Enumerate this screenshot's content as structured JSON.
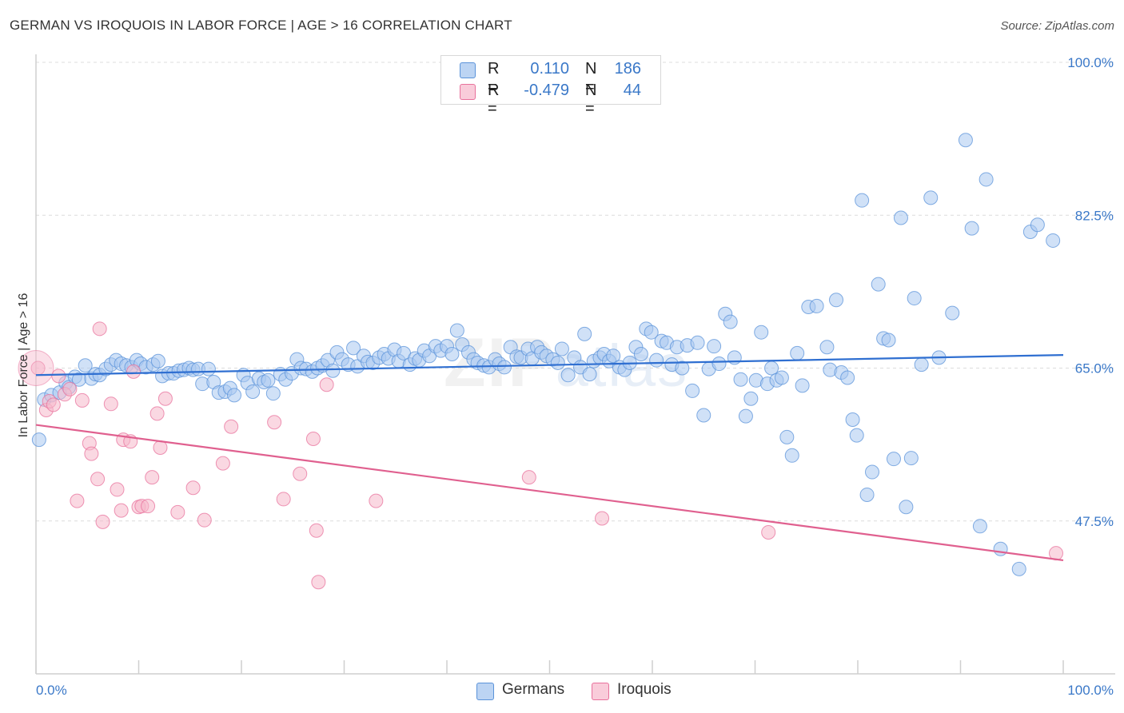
{
  "title": "GERMAN VS IROQUOIS IN LABOR FORCE | AGE > 16 CORRELATION CHART",
  "source": "Source: ZipAtlas.com",
  "watermark": {
    "bold": "ZIP",
    "light": "atlas"
  },
  "legend_top": [
    {
      "r_label": "R =",
      "r_value": "0.110",
      "n_label": "N =",
      "n_value": "186",
      "color": "#a9c8f0"
    },
    {
      "r_label": "R =",
      "r_value": "-0.479",
      "n_label": "N =",
      "n_value": "44",
      "color": "#f6b8cb"
    }
  ],
  "legend_bottom": [
    {
      "label": "Germans",
      "color": "#a9c8f0"
    },
    {
      "label": "Iroquois",
      "color": "#f6b8cb"
    }
  ],
  "chart_data": {
    "type": "scatter",
    "title": "GERMAN VS IROQUOIS IN LABOR FORCE | AGE > 16 CORRELATION CHART",
    "xlabel": "",
    "ylabel": "In Labor Force | Age > 16",
    "xlim": [
      0,
      100
    ],
    "ylim": [
      30,
      100
    ],
    "x_tick_labels": [
      "0.0%",
      "100.0%"
    ],
    "y_ticks": [
      47.5,
      65.0,
      82.5,
      100.0
    ],
    "y_tick_labels": [
      "47.5%",
      "65.0%",
      "82.5%",
      "100.0%"
    ],
    "grid": "horizontal dashed",
    "series": [
      {
        "name": "Germans",
        "color": "#5b93d9",
        "fill": "#a9c8f0",
        "trend": [
          [
            0,
            64.2
          ],
          [
            100,
            66.5
          ]
        ],
        "points": [
          [
            0.3,
            56.8
          ],
          [
            0.8,
            61.4
          ],
          [
            1.5,
            61.9
          ],
          [
            2.3,
            62.2
          ],
          [
            2.9,
            63.3
          ],
          [
            3.2,
            62.8
          ],
          [
            3.8,
            64.0
          ],
          [
            4.2,
            63.7
          ],
          [
            4.8,
            65.3
          ],
          [
            5.4,
            63.8
          ],
          [
            5.8,
            64.3
          ],
          [
            6.2,
            64.2
          ],
          [
            6.8,
            64.9
          ],
          [
            7.3,
            65.4
          ],
          [
            7.8,
            65.9
          ],
          [
            8.3,
            65.5
          ],
          [
            8.8,
            65.3
          ],
          [
            9.3,
            65.1
          ],
          [
            9.8,
            65.9
          ],
          [
            10.2,
            65.5
          ],
          [
            10.7,
            65.1
          ],
          [
            11.4,
            65.4
          ],
          [
            11.9,
            65.8
          ],
          [
            12.3,
            64.1
          ],
          [
            12.9,
            64.4
          ],
          [
            13.4,
            64.4
          ],
          [
            13.9,
            64.7
          ],
          [
            14.4,
            64.8
          ],
          [
            14.9,
            65.0
          ],
          [
            15.3,
            64.8
          ],
          [
            15.8,
            64.9
          ],
          [
            16.2,
            63.2
          ],
          [
            16.8,
            64.9
          ],
          [
            17.3,
            63.4
          ],
          [
            17.8,
            62.2
          ],
          [
            18.4,
            62.3
          ],
          [
            18.9,
            62.7
          ],
          [
            19.3,
            61.9
          ],
          [
            20.2,
            64.2
          ],
          [
            20.6,
            63.3
          ],
          [
            21.1,
            62.3
          ],
          [
            21.7,
            63.8
          ],
          [
            22.2,
            63.4
          ],
          [
            22.6,
            63.6
          ],
          [
            23.1,
            62.1
          ],
          [
            23.8,
            64.3
          ],
          [
            24.3,
            63.7
          ],
          [
            24.9,
            64.4
          ],
          [
            25.4,
            66.0
          ],
          [
            25.8,
            65.0
          ],
          [
            26.3,
            64.9
          ],
          [
            26.9,
            64.6
          ],
          [
            27.4,
            65.0
          ],
          [
            27.9,
            65.3
          ],
          [
            28.4,
            65.9
          ],
          [
            28.9,
            64.7
          ],
          [
            29.3,
            66.8
          ],
          [
            29.8,
            66.0
          ],
          [
            30.4,
            65.4
          ],
          [
            30.9,
            67.3
          ],
          [
            31.3,
            65.2
          ],
          [
            31.9,
            66.4
          ],
          [
            32.3,
            65.7
          ],
          [
            32.8,
            65.6
          ],
          [
            33.4,
            66.2
          ],
          [
            33.9,
            66.6
          ],
          [
            34.3,
            66.1
          ],
          [
            34.9,
            67.1
          ],
          [
            35.3,
            65.8
          ],
          [
            35.8,
            66.7
          ],
          [
            36.4,
            65.4
          ],
          [
            36.9,
            66.1
          ],
          [
            37.3,
            65.9
          ],
          [
            37.8,
            67.0
          ],
          [
            38.3,
            66.4
          ],
          [
            38.9,
            67.5
          ],
          [
            39.4,
            67.0
          ],
          [
            40.0,
            67.5
          ],
          [
            40.5,
            66.6
          ],
          [
            41.0,
            69.3
          ],
          [
            41.5,
            67.7
          ],
          [
            42.1,
            66.8
          ],
          [
            42.6,
            66.0
          ],
          [
            43.0,
            65.6
          ],
          [
            43.6,
            65.3
          ],
          [
            44.1,
            65.1
          ],
          [
            44.7,
            66.0
          ],
          [
            45.1,
            65.5
          ],
          [
            45.6,
            65.1
          ],
          [
            46.2,
            67.4
          ],
          [
            46.8,
            66.3
          ],
          [
            47.2,
            66.2
          ],
          [
            47.9,
            67.2
          ],
          [
            48.3,
            66.1
          ],
          [
            48.8,
            67.4
          ],
          [
            49.2,
            66.8
          ],
          [
            49.7,
            66.4
          ],
          [
            50.3,
            66.0
          ],
          [
            50.8,
            65.6
          ],
          [
            51.2,
            67.2
          ],
          [
            51.8,
            64.2
          ],
          [
            52.4,
            66.2
          ],
          [
            53.0,
            65.1
          ],
          [
            53.4,
            68.9
          ],
          [
            53.9,
            64.3
          ],
          [
            54.3,
            65.8
          ],
          [
            54.9,
            66.2
          ],
          [
            55.3,
            66.6
          ],
          [
            55.8,
            65.8
          ],
          [
            56.2,
            66.4
          ],
          [
            56.8,
            65.1
          ],
          [
            57.3,
            64.8
          ],
          [
            57.8,
            65.6
          ],
          [
            58.4,
            67.4
          ],
          [
            58.9,
            66.6
          ],
          [
            59.4,
            69.5
          ],
          [
            59.9,
            69.1
          ],
          [
            60.4,
            65.9
          ],
          [
            60.9,
            68.1
          ],
          [
            61.4,
            67.9
          ],
          [
            61.9,
            65.4
          ],
          [
            62.4,
            67.4
          ],
          [
            62.9,
            65.0
          ],
          [
            63.4,
            67.6
          ],
          [
            63.9,
            62.4
          ],
          [
            64.4,
            67.9
          ],
          [
            65.0,
            59.6
          ],
          [
            65.5,
            64.9
          ],
          [
            66.0,
            67.5
          ],
          [
            66.5,
            65.5
          ],
          [
            67.1,
            71.2
          ],
          [
            67.6,
            70.3
          ],
          [
            68.0,
            66.2
          ],
          [
            68.6,
            63.7
          ],
          [
            69.1,
            59.5
          ],
          [
            69.6,
            61.5
          ],
          [
            70.1,
            63.6
          ],
          [
            70.6,
            69.1
          ],
          [
            71.2,
            63.2
          ],
          [
            71.6,
            65.0
          ],
          [
            72.1,
            63.6
          ],
          [
            72.6,
            63.9
          ],
          [
            73.1,
            57.1
          ],
          [
            73.6,
            55.0
          ],
          [
            74.1,
            66.7
          ],
          [
            74.6,
            63.0
          ],
          [
            75.2,
            72.0
          ],
          [
            76.0,
            72.1
          ],
          [
            77.0,
            67.4
          ],
          [
            77.3,
            64.8
          ],
          [
            77.9,
            72.8
          ],
          [
            78.4,
            64.5
          ],
          [
            79.0,
            63.9
          ],
          [
            79.5,
            59.1
          ],
          [
            79.9,
            57.3
          ],
          [
            80.4,
            84.2
          ],
          [
            80.9,
            50.5
          ],
          [
            81.4,
            53.1
          ],
          [
            82.0,
            74.6
          ],
          [
            82.5,
            68.4
          ],
          [
            83.0,
            68.2
          ],
          [
            83.5,
            54.6
          ],
          [
            84.2,
            82.2
          ],
          [
            84.7,
            49.1
          ],
          [
            85.2,
            54.7
          ],
          [
            85.5,
            73.0
          ],
          [
            86.2,
            65.4
          ],
          [
            87.1,
            84.5
          ],
          [
            87.9,
            66.2
          ],
          [
            89.2,
            71.3
          ],
          [
            90.5,
            91.1
          ],
          [
            91.1,
            81.0
          ],
          [
            91.9,
            46.9
          ],
          [
            92.5,
            86.6
          ],
          [
            93.9,
            44.3
          ],
          [
            95.7,
            42.0
          ],
          [
            96.8,
            80.6
          ],
          [
            97.5,
            81.4
          ],
          [
            99.0,
            79.6
          ]
        ]
      },
      {
        "name": "Iroquois",
        "color": "#e8719c",
        "fill": "#f6b8cb",
        "trend": [
          [
            0,
            58.5
          ],
          [
            100,
            43.0
          ]
        ],
        "points": [
          [
            0.2,
            65.0
          ],
          [
            1.0,
            60.2
          ],
          [
            1.3,
            61.2
          ],
          [
            1.7,
            60.8
          ],
          [
            2.2,
            64.1
          ],
          [
            2.8,
            62.0
          ],
          [
            3.3,
            62.6
          ],
          [
            4.0,
            49.8
          ],
          [
            4.5,
            61.3
          ],
          [
            5.2,
            56.4
          ],
          [
            5.4,
            55.2
          ],
          [
            6.0,
            52.3
          ],
          [
            6.2,
            69.5
          ],
          [
            6.5,
            47.4
          ],
          [
            7.3,
            60.9
          ],
          [
            7.9,
            51.1
          ],
          [
            8.3,
            48.7
          ],
          [
            8.5,
            56.8
          ],
          [
            9.2,
            56.6
          ],
          [
            9.5,
            64.6
          ],
          [
            10.0,
            49.1
          ],
          [
            10.3,
            49.2
          ],
          [
            10.9,
            49.2
          ],
          [
            11.3,
            52.5
          ],
          [
            11.8,
            59.8
          ],
          [
            12.1,
            55.9
          ],
          [
            12.6,
            61.5
          ],
          [
            13.8,
            48.5
          ],
          [
            15.3,
            51.3
          ],
          [
            16.4,
            47.6
          ],
          [
            18.2,
            54.1
          ],
          [
            19.0,
            58.3
          ],
          [
            23.2,
            58.8
          ],
          [
            24.1,
            50.0
          ],
          [
            25.7,
            52.9
          ],
          [
            27.0,
            56.9
          ],
          [
            27.3,
            46.4
          ],
          [
            27.5,
            40.5
          ],
          [
            28.3,
            63.1
          ],
          [
            33.1,
            49.8
          ],
          [
            48.0,
            52.5
          ],
          [
            55.1,
            47.8
          ],
          [
            71.3,
            46.2
          ],
          [
            99.3,
            43.8
          ]
        ]
      }
    ]
  }
}
